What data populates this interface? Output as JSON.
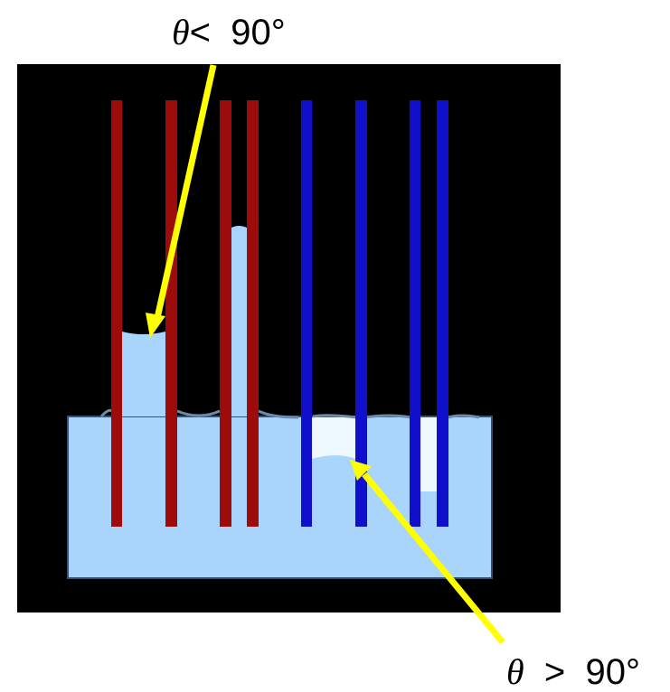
{
  "labels": {
    "top": {
      "symbol": "θ",
      "relation": "<",
      "value": "90°"
    },
    "bottom": {
      "symbol": "θ",
      "relation": ">",
      "value": "90°"
    }
  },
  "colors": {
    "background": "#000000",
    "liquid": "#a9d4fb",
    "meniscus_depressed": "#eef8ff",
    "wetting_tube": "#9e0b0b",
    "nonwetting_tube": "#1010cc",
    "arrow": "#ffff00"
  }
}
